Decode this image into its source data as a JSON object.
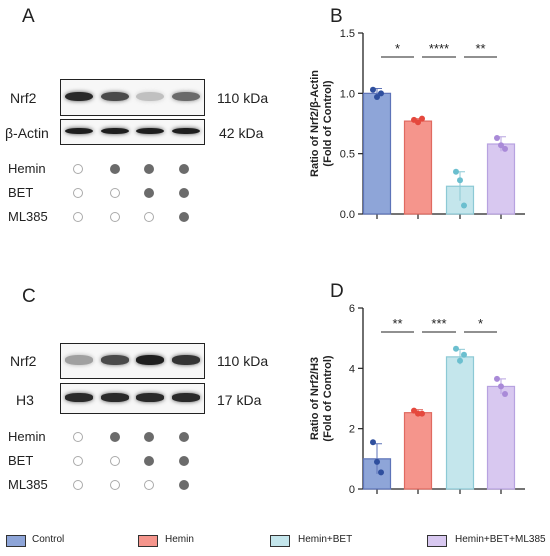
{
  "panels": {
    "A": {
      "letter": "A",
      "blots": [
        {
          "label": "Nrf2",
          "kda": "110 kDa",
          "intensities": [
            0.9,
            0.75,
            0.2,
            0.6
          ]
        },
        {
          "label": "β-Actin",
          "kda": "42 kDa",
          "intensities": [
            0.95,
            0.95,
            0.95,
            0.95
          ]
        }
      ],
      "conditions": [
        {
          "label": "Hemin",
          "dots": [
            false,
            true,
            true,
            true
          ]
        },
        {
          "label": "BET",
          "dots": [
            false,
            false,
            true,
            true
          ]
        },
        {
          "label": "ML385",
          "dots": [
            false,
            false,
            false,
            true
          ]
        }
      ]
    },
    "C": {
      "letter": "C",
      "blots": [
        {
          "label": "Nrf2",
          "kda": "110 kDa",
          "intensities": [
            0.35,
            0.75,
            0.95,
            0.85
          ]
        },
        {
          "label": "H3",
          "kda": "17 kDa",
          "intensities": [
            0.9,
            0.9,
            0.9,
            0.9
          ]
        }
      ],
      "conditions": [
        {
          "label": "Hemin",
          "dots": [
            false,
            true,
            true,
            true
          ]
        },
        {
          "label": "BET",
          "dots": [
            false,
            false,
            true,
            true
          ]
        },
        {
          "label": "ML385",
          "dots": [
            false,
            false,
            false,
            true
          ]
        }
      ]
    }
  },
  "chart_data": [
    {
      "panel": "B",
      "type": "bar",
      "categories": [
        "Control",
        "Hemin",
        "Hemin+BET",
        "Hemin+BET+ML385"
      ],
      "values": [
        1.0,
        0.77,
        0.23,
        0.58
      ],
      "errors": [
        0.04,
        0.02,
        0.12,
        0.06
      ],
      "points": [
        [
          1.03,
          0.97,
          1.0
        ],
        [
          0.78,
          0.76,
          0.79
        ],
        [
          0.35,
          0.28,
          0.07
        ],
        [
          0.63,
          0.57,
          0.54
        ]
      ],
      "ylabel": "Ratio of Nrf2/β-Actin\n(Fold of Control)",
      "ylim": [
        0,
        1.5
      ],
      "yticks": [
        "0.0",
        "0.5",
        "1.0",
        "1.5"
      ],
      "significance": [
        {
          "from": 0,
          "to": 1,
          "label": "*"
        },
        {
          "from": 1,
          "to": 2,
          "label": "****"
        },
        {
          "from": 2,
          "to": 3,
          "label": "**"
        }
      ]
    },
    {
      "panel": "D",
      "type": "bar",
      "categories": [
        "Control",
        "Hemin",
        "Hemin+BET",
        "Hemin+BET+ML385"
      ],
      "values": [
        1.0,
        2.53,
        4.38,
        3.4
      ],
      "errors": [
        0.5,
        0.1,
        0.25,
        0.25
      ],
      "points": [
        [
          1.55,
          0.9,
          0.55
        ],
        [
          2.6,
          2.5,
          2.5
        ],
        [
          4.65,
          4.25,
          4.45
        ],
        [
          3.65,
          3.4,
          3.15
        ]
      ],
      "ylabel": "Ratio of Nrf2/H3\n(Fold of Control)",
      "ylim": [
        0,
        6
      ],
      "yticks": [
        "0",
        "2",
        "4",
        "6"
      ],
      "significance": [
        {
          "from": 0,
          "to": 1,
          "label": "**"
        },
        {
          "from": 1,
          "to": 2,
          "label": "***"
        },
        {
          "from": 2,
          "to": 3,
          "label": "*"
        }
      ]
    }
  ],
  "legend": [
    {
      "label": "Control",
      "color": "#8ea5d8"
    },
    {
      "label": "Hemin",
      "color": "#f5958c"
    },
    {
      "label": "Hemin+BET",
      "color": "#c4e6ec"
    },
    {
      "label": "Hemin+BET+ML385",
      "color": "#d8c8f0"
    }
  ],
  "colors": {
    "bar_fill": [
      "#8ea5d8",
      "#f5958c",
      "#c4e6ec",
      "#d8c8f0"
    ],
    "bar_stroke": [
      "#5d73b8",
      "#e06a60",
      "#8cc9d5",
      "#b7a2e0"
    ],
    "point_color": [
      "#2f4f9e",
      "#e5483d",
      "#6bbfcf",
      "#a98ad8"
    ]
  }
}
